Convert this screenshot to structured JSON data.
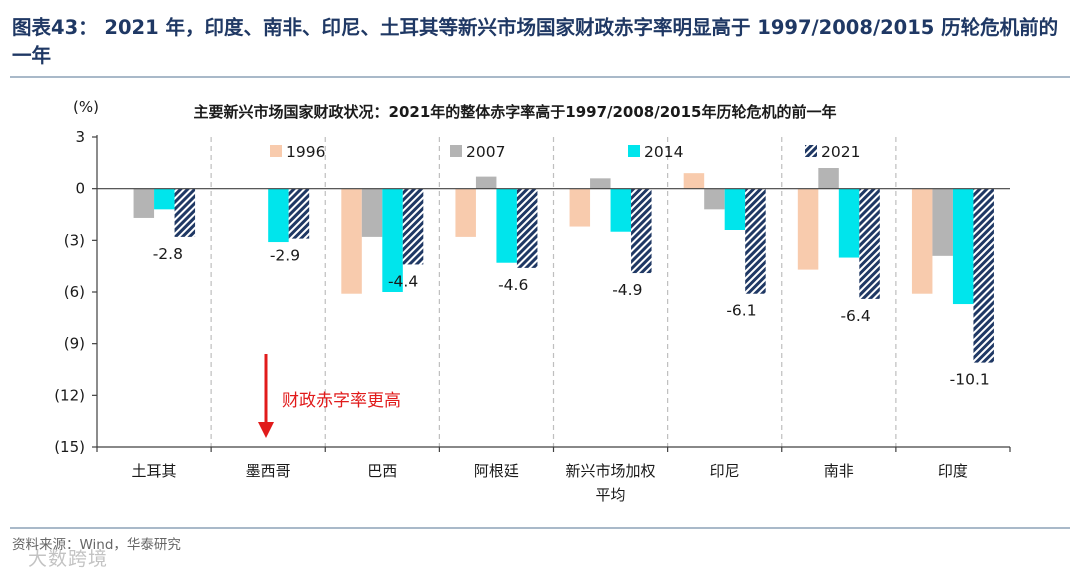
{
  "figure": {
    "title": "图表43： 2021 年，印度、南非、印尼、土耳其等新兴市场国家财政赤字率明显高于 1997/2008/2015 历轮危机前的一年",
    "source": "资料来源：Wind，华泰研究",
    "watermark": "大数跨境"
  },
  "colors": {
    "title": "#1f3864",
    "s1996": "#f8cbad",
    "s2007": "#b4b4b4",
    "s2014": "#00e5ec",
    "s2021": "#1f3864",
    "annotation": "#e11b1b"
  },
  "chart_data": {
    "type": "bar",
    "title": "主要新兴市场国家财政状况：2021年的整体赤字率高于1997/2008/2015年历轮危机的前一年",
    "ylabel": "(%)",
    "ylim": [
      -15,
      3
    ],
    "yticks": [
      3,
      0,
      -3,
      -6,
      -9,
      -12,
      -15
    ],
    "ytick_labels": [
      "3",
      "0",
      "(3)",
      "(6)",
      "(9)",
      "(12)",
      "(15)"
    ],
    "categories": [
      "土耳其",
      "墨西哥",
      "巴西",
      "阿根廷",
      "新兴市场加权平均",
      "印尼",
      "南非",
      "印度"
    ],
    "category_lines": [
      [
        "土耳其"
      ],
      [
        "墨西哥"
      ],
      [
        "巴西"
      ],
      [
        "阿根廷"
      ],
      [
        "新兴市场加权",
        "平均"
      ],
      [
        "印尼"
      ],
      [
        "南非"
      ],
      [
        "印度"
      ]
    ],
    "series": [
      {
        "name": "1996",
        "values": [
          null,
          null,
          -6.1,
          -2.8,
          -2.2,
          0.9,
          -4.7,
          -6.1
        ]
      },
      {
        "name": "2007",
        "values": [
          -1.7,
          null,
          -2.8,
          0.7,
          0.6,
          -1.2,
          1.2,
          -3.9
        ]
      },
      {
        "name": "2014",
        "values": [
          -1.2,
          -3.1,
          -6.0,
          -4.3,
          -2.5,
          -2.4,
          -4.0,
          -6.7
        ]
      },
      {
        "name": "2021",
        "values": [
          -2.8,
          -2.9,
          -4.4,
          -4.6,
          -4.9,
          -6.1,
          -6.4,
          -10.1
        ]
      }
    ],
    "data_labels": [
      "-2.8",
      "-2.9",
      "-4.4",
      "-4.6",
      "-4.9",
      "-6.1",
      "-6.4",
      "-10.1"
    ],
    "legend_position": "top",
    "annotation": "财政赤字率更高"
  }
}
